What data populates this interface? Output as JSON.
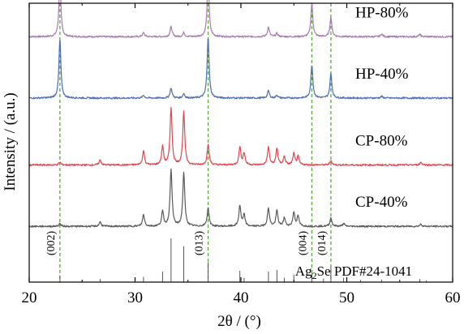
{
  "chart_data": {
    "type": "line",
    "xlabel": "2θ / (°)",
    "ylabel": "Intensity / (a.u.)",
    "xlim": [
      20,
      60
    ],
    "xticks": [
      20,
      30,
      40,
      50,
      60
    ],
    "grid": false,
    "y_ticks_shown": false,
    "series": [
      {
        "name": "HP-80%",
        "color": "#a77ab1",
        "baseline_level": 0.88,
        "peak_scale": 0.2,
        "peaks": [
          [
            22.9,
            1.0
          ],
          [
            30.8,
            0.07
          ],
          [
            33.4,
            0.18
          ],
          [
            34.6,
            0.07
          ],
          [
            36.9,
            1.05
          ],
          [
            42.6,
            0.17
          ],
          [
            43.4,
            0.06
          ],
          [
            46.7,
            0.59
          ],
          [
            48.5,
            0.35
          ],
          [
            53.3,
            0.05
          ],
          [
            56.9,
            0.04
          ]
        ]
      },
      {
        "name": "HP-40%",
        "color": "#4c6fb5",
        "baseline_level": 0.66,
        "peak_scale": 0.2,
        "peaks": [
          [
            22.9,
            1.05
          ],
          [
            30.8,
            0.05
          ],
          [
            33.4,
            0.18
          ],
          [
            34.6,
            0.08
          ],
          [
            36.9,
            1.1
          ],
          [
            42.6,
            0.13
          ],
          [
            43.4,
            0.05
          ],
          [
            46.7,
            0.6
          ],
          [
            48.5,
            0.44
          ],
          [
            53.3,
            0.03
          ]
        ]
      },
      {
        "name": "CP-80%",
        "color": "#e4454f",
        "baseline_level": 0.42,
        "peak_scale": 0.2,
        "peaks": [
          [
            22.9,
            0.05
          ],
          [
            26.7,
            0.09
          ],
          [
            30.8,
            0.25
          ],
          [
            32.6,
            0.33
          ],
          [
            33.4,
            1.03
          ],
          [
            34.6,
            0.95
          ],
          [
            36.9,
            0.37
          ],
          [
            39.9,
            0.32
          ],
          [
            40.3,
            0.21
          ],
          [
            42.6,
            0.32
          ],
          [
            43.4,
            0.3
          ],
          [
            44.1,
            0.15
          ],
          [
            45.0,
            0.2
          ],
          [
            45.4,
            0.15
          ],
          [
            48.5,
            0.08
          ],
          [
            57.0,
            0.05
          ]
        ]
      },
      {
        "name": "CP-40%",
        "color": "#5a5a5a",
        "baseline_level": 0.2,
        "peak_scale": 0.2,
        "peaks": [
          [
            22.9,
            0.05
          ],
          [
            26.7,
            0.08
          ],
          [
            30.8,
            0.21
          ],
          [
            32.6,
            0.26
          ],
          [
            33.4,
            1.03
          ],
          [
            34.6,
            0.97
          ],
          [
            36.9,
            0.33
          ],
          [
            39.9,
            0.37
          ],
          [
            40.3,
            0.2
          ],
          [
            42.6,
            0.33
          ],
          [
            43.4,
            0.28
          ],
          [
            44.1,
            0.15
          ],
          [
            45.0,
            0.25
          ],
          [
            45.4,
            0.18
          ],
          [
            48.5,
            0.15
          ],
          [
            49.7,
            0.05
          ],
          [
            57.0,
            0.04
          ]
        ]
      }
    ],
    "reference": {
      "label_parts": [
        "Ag",
        "2",
        "Se PDF#24-1041"
      ],
      "color": "#555555",
      "lines": [
        [
          22.9,
          0.15
        ],
        [
          25.0,
          0.05
        ],
        [
          26.7,
          0.07
        ],
        [
          30.0,
          0.09
        ],
        [
          30.8,
          0.12
        ],
        [
          32.6,
          0.24
        ],
        [
          33.4,
          1.0
        ],
        [
          34.6,
          0.82
        ],
        [
          36.9,
          0.45
        ],
        [
          39.9,
          0.26
        ],
        [
          40.3,
          0.1
        ],
        [
          42.6,
          0.24
        ],
        [
          43.4,
          0.28
        ],
        [
          44.1,
          0.1
        ],
        [
          45.0,
          0.17
        ],
        [
          46.7,
          0.2
        ],
        [
          47.8,
          0.08
        ],
        [
          48.5,
          0.35
        ],
        [
          49.7,
          0.1
        ],
        [
          51.3,
          0.05
        ],
        [
          53.3,
          0.06
        ],
        [
          56.9,
          0.07
        ],
        [
          57.5,
          0.04
        ]
      ]
    },
    "dashed_guides": {
      "color": "#5aa83a",
      "positions": [
        22.9,
        36.9,
        46.7,
        48.5
      ],
      "labels": [
        "(002)",
        "(013)",
        "(004)",
        "(014)"
      ]
    }
  }
}
